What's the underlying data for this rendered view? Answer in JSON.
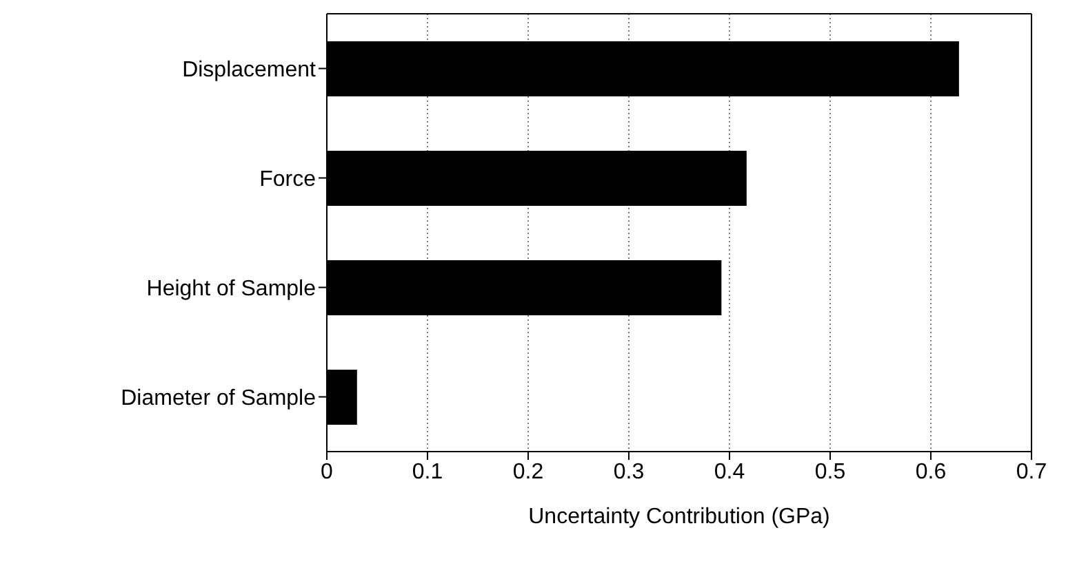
{
  "chart_data": {
    "type": "bar",
    "orientation": "horizontal",
    "xlabel": "Uncertainty Contribution (GPa)",
    "categories": [
      "Displacement",
      "Force",
      "Height of Sample",
      "Diameter of Sample"
    ],
    "values": [
      0.628,
      0.417,
      0.392,
      0.03
    ],
    "color": "#000000",
    "xlim": [
      0,
      0.7
    ],
    "xticks": [
      0,
      0.1,
      0.2,
      0.3,
      0.4,
      0.5,
      0.6,
      0.7
    ],
    "grid": "x"
  }
}
